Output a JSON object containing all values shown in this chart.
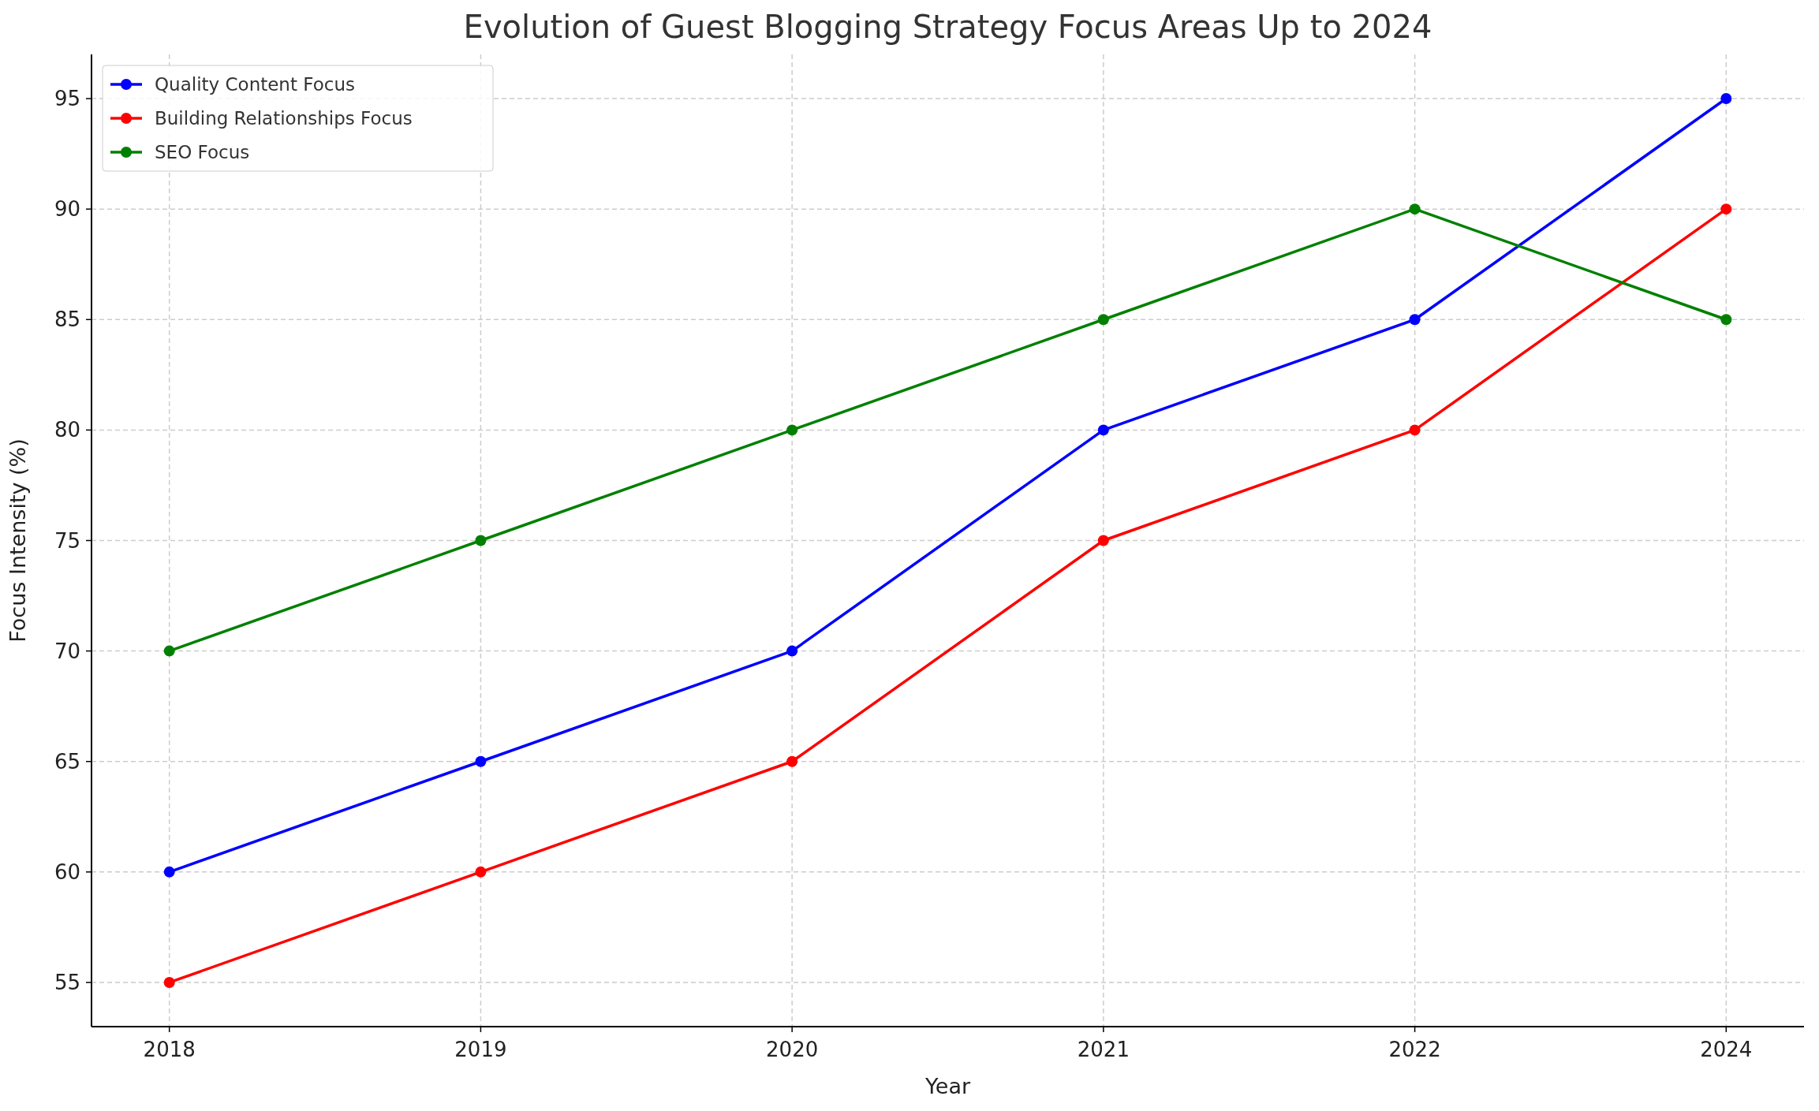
{
  "chart_data": {
    "type": "line",
    "title": "Evolution of Guest Blogging Strategy Focus Areas Up to 2024",
    "xlabel": "Year",
    "ylabel": "Focus Intensity (%)",
    "categories": [
      "2018",
      "2019",
      "2020",
      "2021",
      "2022",
      "2024"
    ],
    "series": [
      {
        "name": "Quality Content Focus",
        "color": "#0000ff",
        "values": [
          60,
          65,
          70,
          80,
          85,
          95
        ]
      },
      {
        "name": "Building Relationships Focus",
        "color": "#ff0000",
        "values": [
          55,
          60,
          65,
          75,
          80,
          90
        ]
      },
      {
        "name": "SEO Focus",
        "color": "#008000",
        "values": [
          70,
          75,
          80,
          85,
          90,
          85
        ]
      }
    ],
    "ylim": [
      53,
      97
    ],
    "yticks": [
      55,
      60,
      65,
      70,
      75,
      80,
      85,
      90,
      95
    ],
    "grid": true,
    "legend": "top left",
    "marker": "circle",
    "line_style": "solid"
  }
}
